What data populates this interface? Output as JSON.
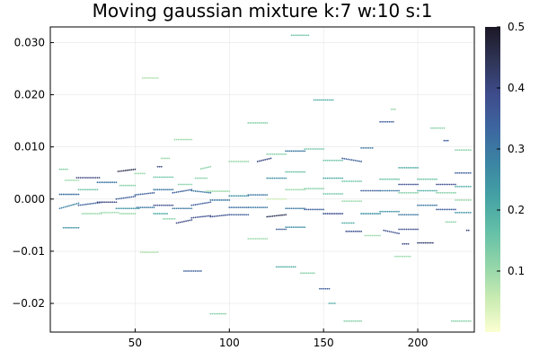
{
  "chart_data": {
    "type": "scatter",
    "title": "Moving gaussian mixture k:7 w:10 s:1",
    "xlabel": "",
    "ylabel": "",
    "xlim": [
      5,
      230
    ],
    "ylim": [
      -0.0255,
      0.033
    ],
    "x_ticks": [
      50,
      100,
      150,
      200
    ],
    "x_tick_labels": [
      "50",
      "100",
      "150",
      "200"
    ],
    "y_ticks": [
      -0.02,
      -0.01,
      0.0,
      0.01,
      0.02,
      0.03
    ],
    "y_tick_labels": [
      "−0.02",
      "−0.01",
      "0.000",
      "0.010",
      "0.020",
      "0.030"
    ],
    "grid": true,
    "legend": false,
    "colorbar": {
      "min": 0.0,
      "max": 0.5,
      "ticks": [
        0.1,
        0.2,
        0.3,
        0.4,
        0.5
      ],
      "tick_labels": [
        "0.1",
        "0.2",
        "0.3",
        "0.4",
        "0.5"
      ],
      "colormap": [
        "#fcffd1",
        "#c9ebb2",
        "#90d4a9",
        "#63bfa7",
        "#44a1a4",
        "#3b84a3",
        "#3d66a0",
        "#3e4c8c",
        "#2f3556",
        "#1c1725"
      ]
    },
    "runs": [
      {
        "x0": 10,
        "x1": 14,
        "y0": 0.0057,
        "y1": 0.0057,
        "w": 0.12
      },
      {
        "x0": 13,
        "x1": 20,
        "y0": 0.0036,
        "y1": 0.0036,
        "w": 0.1
      },
      {
        "x0": 10,
        "x1": 20,
        "y0": 0.0009,
        "y1": 0.0009,
        "w": 0.32
      },
      {
        "x0": 10,
        "x1": 20,
        "y0": -0.0018,
        "y1": -0.0008,
        "w": 0.28
      },
      {
        "x0": 12,
        "x1": 20,
        "y0": -0.0055,
        "y1": -0.0055,
        "w": 0.25
      },
      {
        "x0": 19,
        "x1": 31,
        "y0": 0.0041,
        "y1": 0.0041,
        "w": 0.4
      },
      {
        "x0": 20,
        "x1": 30,
        "y0": 0.0018,
        "y1": 0.0018,
        "w": 0.15
      },
      {
        "x0": 20,
        "x1": 33,
        "y0": -0.0012,
        "y1": -0.0006,
        "w": 0.35
      },
      {
        "x0": 22,
        "x1": 32,
        "y0": -0.0028,
        "y1": -0.0028,
        "w": 0.1
      },
      {
        "x0": 30,
        "x1": 40,
        "y0": 0.0032,
        "y1": 0.0032,
        "w": 0.3
      },
      {
        "x0": 30,
        "x1": 40,
        "y0": -0.0006,
        "y1": -0.0006,
        "w": 0.4
      },
      {
        "x0": 32,
        "x1": 41,
        "y0": -0.0026,
        "y1": -0.0026,
        "w": 0.1
      },
      {
        "x0": 41,
        "x1": 50,
        "y0": 0.0053,
        "y1": 0.0057,
        "w": 0.45
      },
      {
        "x0": 42,
        "x1": 50,
        "y0": 0.0026,
        "y1": 0.0026,
        "w": 0.12
      },
      {
        "x0": 40,
        "x1": 50,
        "y0": 0.0,
        "y1": 0.0005,
        "w": 0.35
      },
      {
        "x0": 40,
        "x1": 52,
        "y0": -0.0018,
        "y1": -0.0018,
        "w": 0.25
      },
      {
        "x0": 42,
        "x1": 50,
        "y0": -0.0028,
        "y1": -0.0028,
        "w": 0.1
      },
      {
        "x0": 50,
        "x1": 55,
        "y0": 0.0049,
        "y1": 0.0049,
        "w": 0.1
      },
      {
        "x0": 50,
        "x1": 60,
        "y0": 0.0008,
        "y1": 0.0012,
        "w": 0.35
      },
      {
        "x0": 51,
        "x1": 60,
        "y0": -0.0016,
        "y1": -0.0016,
        "w": 0.3
      },
      {
        "x0": 54,
        "x1": 62,
        "y0": 0.0232,
        "y1": 0.0232,
        "w": 0.08
      },
      {
        "x0": 53,
        "x1": 62,
        "y0": -0.0102,
        "y1": -0.0102,
        "w": 0.08
      },
      {
        "x0": 60,
        "x1": 70,
        "y0": 0.0042,
        "y1": 0.0042,
        "w": 0.15
      },
      {
        "x0": 60,
        "x1": 70,
        "y0": 0.0018,
        "y1": 0.0018,
        "w": 0.3
      },
      {
        "x0": 60,
        "x1": 70,
        "y0": -0.0012,
        "y1": -0.0012,
        "w": 0.38
      },
      {
        "x0": 60,
        "x1": 67,
        "y0": -0.0028,
        "y1": -0.0028,
        "w": 0.2
      },
      {
        "x0": 62,
        "x1": 64,
        "y0": 0.0062,
        "y1": 0.0062,
        "w": 0.4
      },
      {
        "x0": 64,
        "x1": 68,
        "y0": 0.0078,
        "y1": 0.0078,
        "w": 0.1
      },
      {
        "x0": 65,
        "x1": 71,
        "y0": -0.0038,
        "y1": -0.0038,
        "w": 0.12
      },
      {
        "x0": 70,
        "x1": 80,
        "y0": 0.0012,
        "y1": 0.0018,
        "w": 0.35
      },
      {
        "x0": 70,
        "x1": 80,
        "y0": -0.0018,
        "y1": -0.0018,
        "w": 0.3
      },
      {
        "x0": 72,
        "x1": 80,
        "y0": -0.0046,
        "y1": -0.004,
        "w": 0.4
      },
      {
        "x0": 71,
        "x1": 80,
        "y0": 0.0114,
        "y1": 0.0114,
        "w": 0.1
      },
      {
        "x0": 73,
        "x1": 80,
        "y0": 0.0028,
        "y1": 0.0028,
        "w": 0.12
      },
      {
        "x0": 76,
        "x1": 85,
        "y0": -0.0138,
        "y1": -0.0138,
        "w": 0.35
      },
      {
        "x0": 80,
        "x1": 90,
        "y0": 0.0016,
        "y1": 0.0012,
        "w": 0.3
      },
      {
        "x0": 80,
        "x1": 90,
        "y0": -0.0012,
        "y1": -0.0006,
        "w": 0.35
      },
      {
        "x0": 80,
        "x1": 90,
        "y0": -0.0036,
        "y1": -0.0032,
        "w": 0.38
      },
      {
        "x0": 82,
        "x1": 88,
        "y0": 0.004,
        "y1": 0.004,
        "w": 0.12
      },
      {
        "x0": 85,
        "x1": 90,
        "y0": 0.0058,
        "y1": 0.0062,
        "w": 0.12
      },
      {
        "x0": 88,
        "x1": 100,
        "y0": 0.0015,
        "y1": 0.0015,
        "w": 0.1
      },
      {
        "x0": 90,
        "x1": 100,
        "y0": -0.0002,
        "y1": -0.0002,
        "w": 0.3
      },
      {
        "x0": 90,
        "x1": 100,
        "y0": -0.0034,
        "y1": -0.003,
        "w": 0.38
      },
      {
        "x0": 90,
        "x1": 98,
        "y0": -0.022,
        "y1": -0.022,
        "w": 0.12
      },
      {
        "x0": 100,
        "x1": 110,
        "y0": 0.0072,
        "y1": 0.0072,
        "w": 0.1
      },
      {
        "x0": 100,
        "x1": 110,
        "y0": 0.0006,
        "y1": 0.0006,
        "w": 0.25
      },
      {
        "x0": 100,
        "x1": 110,
        "y0": -0.0016,
        "y1": -0.0016,
        "w": 0.32
      },
      {
        "x0": 100,
        "x1": 110,
        "y0": -0.003,
        "y1": -0.003,
        "w": 0.35
      },
      {
        "x0": 110,
        "x1": 120,
        "y0": 0.0146,
        "y1": 0.0146,
        "w": 0.12
      },
      {
        "x0": 110,
        "x1": 120,
        "y0": 0.0008,
        "y1": 0.0008,
        "w": 0.3
      },
      {
        "x0": 110,
        "x1": 120,
        "y0": -0.0016,
        "y1": -0.0016,
        "w": 0.3
      },
      {
        "x0": 110,
        "x1": 120,
        "y0": -0.0076,
        "y1": -0.0076,
        "w": 0.1
      },
      {
        "x0": 115,
        "x1": 122,
        "y0": 0.0072,
        "y1": 0.0078,
        "w": 0.4
      },
      {
        "x0": 120,
        "x1": 130,
        "y0": 0.0086,
        "y1": 0.0086,
        "w": 0.12
      },
      {
        "x0": 120,
        "x1": 130,
        "y0": 0.004,
        "y1": 0.004,
        "w": 0.25
      },
      {
        "x0": 120,
        "x1": 130,
        "y0": 0.0,
        "y1": 0.0,
        "w": 0.05
      },
      {
        "x0": 120,
        "x1": 130,
        "y0": -0.0034,
        "y1": -0.003,
        "w": 0.45
      },
      {
        "x0": 125,
        "x1": 130,
        "y0": -0.0058,
        "y1": -0.0058,
        "w": 0.35
      },
      {
        "x0": 125,
        "x1": 135,
        "y0": -0.013,
        "y1": -0.013,
        "w": 0.2
      },
      {
        "x0": 130,
        "x1": 140,
        "y0": 0.0092,
        "y1": 0.0092,
        "w": 0.3
      },
      {
        "x0": 130,
        "x1": 140,
        "y0": 0.0052,
        "y1": 0.0052,
        "w": 0.15
      },
      {
        "x0": 130,
        "x1": 140,
        "y0": 0.0018,
        "y1": 0.0018,
        "w": 0.1
      },
      {
        "x0": 130,
        "x1": 140,
        "y0": -0.0018,
        "y1": -0.0018,
        "w": 0.3
      },
      {
        "x0": 130,
        "x1": 140,
        "y0": -0.0054,
        "y1": -0.0054,
        "w": 0.25
      },
      {
        "x0": 133,
        "x1": 142,
        "y0": 0.0314,
        "y1": 0.0314,
        "w": 0.15
      },
      {
        "x0": 140,
        "x1": 150,
        "y0": 0.0096,
        "y1": 0.0096,
        "w": 0.15
      },
      {
        "x0": 140,
        "x1": 150,
        "y0": 0.002,
        "y1": 0.002,
        "w": 0.12
      },
      {
        "x0": 140,
        "x1": 150,
        "y0": -0.002,
        "y1": -0.002,
        "w": 0.35
      },
      {
        "x0": 138,
        "x1": 145,
        "y0": -0.0142,
        "y1": -0.0142,
        "w": 0.12
      },
      {
        "x0": 145,
        "x1": 155,
        "y0": 0.019,
        "y1": 0.019,
        "w": 0.2
      },
      {
        "x0": 150,
        "x1": 160,
        "y0": 0.0074,
        "y1": 0.0074,
        "w": 0.15
      },
      {
        "x0": 150,
        "x1": 160,
        "y0": 0.004,
        "y1": 0.004,
        "w": 0.2
      },
      {
        "x0": 150,
        "x1": 160,
        "y0": 0.001,
        "y1": 0.001,
        "w": 0.15
      },
      {
        "x0": 150,
        "x1": 160,
        "y0": -0.0028,
        "y1": -0.0028,
        "w": 0.38
      },
      {
        "x0": 148,
        "x1": 153,
        "y0": -0.0172,
        "y1": -0.0172,
        "w": 0.35
      },
      {
        "x0": 153,
        "x1": 156,
        "y0": -0.02,
        "y1": -0.02,
        "w": 0.2
      },
      {
        "x0": 160,
        "x1": 170,
        "y0": 0.0078,
        "y1": 0.0072,
        "w": 0.35
      },
      {
        "x0": 160,
        "x1": 170,
        "y0": 0.0034,
        "y1": 0.0034,
        "w": 0.15
      },
      {
        "x0": 160,
        "x1": 170,
        "y0": -0.0004,
        "y1": -0.0004,
        "w": 0.1
      },
      {
        "x0": 160,
        "x1": 166,
        "y0": -0.0046,
        "y1": -0.0046,
        "w": 0.2
      },
      {
        "x0": 162,
        "x1": 170,
        "y0": -0.0062,
        "y1": -0.0062,
        "w": 0.38
      },
      {
        "x0": 161,
        "x1": 170,
        "y0": -0.0234,
        "y1": -0.0234,
        "w": 0.12
      },
      {
        "x0": 170,
        "x1": 180,
        "y0": 0.0016,
        "y1": 0.0016,
        "w": 0.35
      },
      {
        "x0": 170,
        "x1": 180,
        "y0": -0.0028,
        "y1": -0.0028,
        "w": 0.25
      },
      {
        "x0": 170,
        "x1": 176,
        "y0": 0.0098,
        "y1": 0.0098,
        "w": 0.3
      },
      {
        "x0": 172,
        "x1": 180,
        "y0": -0.007,
        "y1": -0.007,
        "w": 0.1
      },
      {
        "x0": 180,
        "x1": 187,
        "y0": 0.0148,
        "y1": 0.0148,
        "w": 0.35
      },
      {
        "x0": 180,
        "x1": 190,
        "y0": 0.0038,
        "y1": 0.0038,
        "w": 0.15
      },
      {
        "x0": 180,
        "x1": 190,
        "y0": 0.0016,
        "y1": 0.0016,
        "w": 0.3
      },
      {
        "x0": 180,
        "x1": 190,
        "y0": -0.0024,
        "y1": -0.0024,
        "w": 0.25
      },
      {
        "x0": 182,
        "x1": 190,
        "y0": -0.006,
        "y1": -0.0066,
        "w": 0.38
      },
      {
        "x0": 186,
        "x1": 188,
        "y0": 0.0172,
        "y1": 0.0172,
        "w": 0.1
      },
      {
        "x0": 188,
        "x1": 196,
        "y0": -0.011,
        "y1": -0.011,
        "w": 0.1
      },
      {
        "x0": 190,
        "x1": 200,
        "y0": 0.006,
        "y1": 0.006,
        "w": 0.2
      },
      {
        "x0": 190,
        "x1": 200,
        "y0": 0.0028,
        "y1": 0.0028,
        "w": 0.38
      },
      {
        "x0": 190,
        "x1": 200,
        "y0": 0.0012,
        "y1": 0.0012,
        "w": 0.12
      },
      {
        "x0": 190,
        "x1": 200,
        "y0": -0.003,
        "y1": -0.003,
        "w": 0.3
      },
      {
        "x0": 190,
        "x1": 200,
        "y0": -0.0058,
        "y1": -0.0058,
        "w": 0.38
      },
      {
        "x0": 192,
        "x1": 195,
        "y0": -0.0086,
        "y1": -0.0086,
        "w": 0.4
      },
      {
        "x0": 200,
        "x1": 210,
        "y0": 0.0038,
        "y1": 0.0038,
        "w": 0.15
      },
      {
        "x0": 200,
        "x1": 210,
        "y0": 0.0016,
        "y1": 0.0016,
        "w": 0.2
      },
      {
        "x0": 200,
        "x1": 210,
        "y0": -0.0012,
        "y1": -0.0012,
        "w": 0.3
      },
      {
        "x0": 200,
        "x1": 208,
        "y0": -0.0084,
        "y1": -0.0084,
        "w": 0.42
      },
      {
        "x0": 207,
        "x1": 214,
        "y0": 0.0136,
        "y1": 0.0136,
        "w": 0.12
      },
      {
        "x0": 210,
        "x1": 220,
        "y0": 0.0028,
        "y1": 0.0028,
        "w": 0.38
      },
      {
        "x0": 210,
        "x1": 220,
        "y0": 0.0012,
        "y1": 0.0012,
        "w": 0.12
      },
      {
        "x0": 210,
        "x1": 220,
        "y0": -0.002,
        "y1": -0.002,
        "w": 0.35
      },
      {
        "x0": 214,
        "x1": 216,
        "y0": 0.0112,
        "y1": 0.0112,
        "w": 0.35
      },
      {
        "x0": 215,
        "x1": 220,
        "y0": -0.0044,
        "y1": -0.0044,
        "w": 0.12
      },
      {
        "x0": 220,
        "x1": 228,
        "y0": 0.0094,
        "y1": 0.0094,
        "w": 0.12
      },
      {
        "x0": 220,
        "x1": 228,
        "y0": 0.005,
        "y1": 0.005,
        "w": 0.35
      },
      {
        "x0": 220,
        "x1": 228,
        "y0": 0.0024,
        "y1": 0.0024,
        "w": 0.2
      },
      {
        "x0": 220,
        "x1": 228,
        "y0": -0.0002,
        "y1": -0.0002,
        "w": 0.1
      },
      {
        "x0": 220,
        "x1": 228,
        "y0": -0.0026,
        "y1": -0.0026,
        "w": 0.25
      },
      {
        "x0": 226,
        "x1": 227,
        "y0": -0.006,
        "y1": -0.006,
        "w": 0.4
      },
      {
        "x0": 218,
        "x1": 228,
        "y0": -0.0234,
        "y1": -0.0234,
        "w": 0.12
      }
    ]
  }
}
